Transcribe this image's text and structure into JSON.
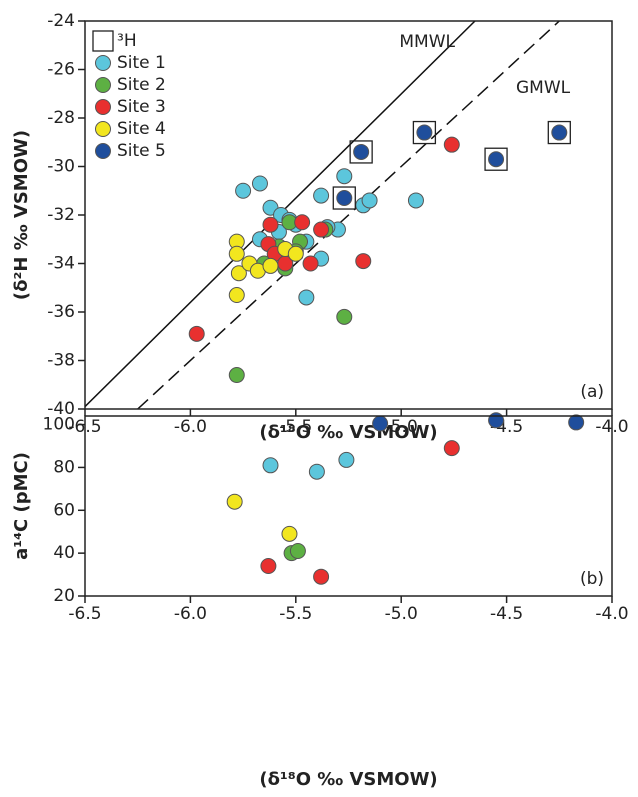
{
  "chart_data": [
    {
      "type": "scatter",
      "panel_label": "(a)",
      "xlabel": "(δ¹⁸O ‰ VSMOW)",
      "ylabel": "(δ²H ‰ VSMOW)",
      "xlim": [
        -6.5,
        -4.0
      ],
      "xticks": [
        -6.5,
        {
          "value": -6,
          "label": "-6.0"
        },
        -5.5,
        {
          "value": -5,
          "label": "-5.0"
        },
        -4.5,
        {
          "value": -4,
          "label": "-4.0"
        }
      ],
      "ylim": [
        -40,
        -24
      ],
      "yticks": [
        -40,
        -38,
        -36,
        -34,
        -32,
        -30,
        -28,
        -26,
        -24
      ],
      "legend": "upper left",
      "lines": [
        {
          "name": "MMWL",
          "style": "solid",
          "x": [
            -6.5,
            -4.65
          ],
          "y": [
            -39.9,
            -24
          ]
        },
        {
          "name": "GMWL",
          "style": "dashed",
          "x": [
            -6.25,
            -4.25
          ],
          "y": [
            -40,
            -24
          ]
        }
      ],
      "series": [
        {
          "name": "³H",
          "marker": "square",
          "color": "#222222",
          "x": [
            -5.19,
            -5.27,
            -4.89,
            -4.55,
            -4.25
          ],
          "y": [
            -29.4,
            -31.3,
            -28.6,
            -29.7,
            -28.6
          ]
        },
        {
          "name": "Site 1",
          "marker": "circle",
          "color": "#5cc6dc",
          "x": [
            -5.75,
            -5.67,
            -5.62,
            -5.57,
            -5.53,
            -5.5,
            -5.58,
            -5.67,
            -5.45,
            -5.38,
            -5.27,
            -5.3,
            -5.38,
            -5.45,
            -5.18,
            -5.15,
            -4.93,
            -5.35
          ],
          "y": [
            -31.0,
            -30.7,
            -31.7,
            -32.0,
            -32.2,
            -32.4,
            -32.7,
            -33.0,
            -33.1,
            -31.2,
            -30.4,
            -32.6,
            -33.8,
            -35.4,
            -31.6,
            -31.4,
            -31.4,
            -32.5
          ]
        },
        {
          "name": "Site 2",
          "marker": "circle",
          "color": "#5db043",
          "x": [
            -5.53,
            -5.48,
            -5.5,
            -5.36,
            -5.55,
            -5.58,
            -5.27,
            -5.78,
            -5.65
          ],
          "y": [
            -32.3,
            -33.1,
            -33.5,
            -32.6,
            -34.2,
            -33.3,
            -36.2,
            -38.6,
            -34.0
          ]
        },
        {
          "name": "Site 3",
          "marker": "circle",
          "color": "#e8302f",
          "x": [
            -5.97,
            -5.62,
            -5.63,
            -5.6,
            -5.55,
            -5.47,
            -5.43,
            -5.38,
            -5.18,
            -4.76
          ],
          "y": [
            -36.9,
            -32.4,
            -33.2,
            -33.6,
            -34.0,
            -32.3,
            -34.0,
            -32.6,
            -33.9,
            -29.1
          ]
        },
        {
          "name": "Site 4",
          "marker": "circle",
          "color": "#f2e61f",
          "x": [
            -5.78,
            -5.78,
            -5.77,
            -5.72,
            -5.68,
            -5.62,
            -5.55,
            -5.5,
            -5.78
          ],
          "y": [
            -33.1,
            -33.6,
            -34.4,
            -34.0,
            -34.3,
            -34.1,
            -33.4,
            -33.6,
            -35.3
          ]
        },
        {
          "name": "Site 5",
          "marker": "circle",
          "color": "#1f4e9c",
          "x": [
            -5.19,
            -5.27,
            -4.89,
            -4.55,
            -4.25
          ],
          "y": [
            -29.4,
            -31.3,
            -28.6,
            -29.7,
            -28.6
          ]
        }
      ]
    },
    {
      "type": "scatter",
      "panel_label": "(b)",
      "xlabel": "(δ¹⁸O ‰ VSMOW)",
      "ylabel": "a¹⁴C (pMC)",
      "xlim": [
        -6.5,
        -4.0
      ],
      "xticks": [
        -6.5,
        {
          "value": -6,
          "label": "-6.0"
        },
        -5.5,
        {
          "value": -5,
          "label": "-5.0"
        },
        -4.5,
        {
          "value": -4,
          "label": "-4.0"
        }
      ],
      "ylim": [
        20,
        104
      ],
      "yticks": [
        20,
        40,
        60,
        80,
        100
      ],
      "series": [
        {
          "marker": "circle",
          "color": "#5cc6dc",
          "x": [
            -5.62,
            -5.4,
            -5.26
          ],
          "y": [
            81,
            78,
            83.5
          ]
        },
        {
          "marker": "circle",
          "color": "#5db043",
          "x": [
            -5.52,
            -5.49
          ],
          "y": [
            40,
            41
          ]
        },
        {
          "marker": "circle",
          "color": "#e8302f",
          "x": [
            -5.63,
            -5.38,
            -4.76
          ],
          "y": [
            34,
            29,
            89
          ]
        },
        {
          "marker": "circle",
          "color": "#f2e61f",
          "x": [
            -5.79,
            -5.53
          ],
          "y": [
            64,
            49
          ]
        },
        {
          "marker": "circle",
          "color": "#1f4e9c",
          "x": [
            -5.1,
            -4.55,
            -4.17
          ],
          "y": [
            100.5,
            102,
            101
          ]
        }
      ]
    }
  ]
}
